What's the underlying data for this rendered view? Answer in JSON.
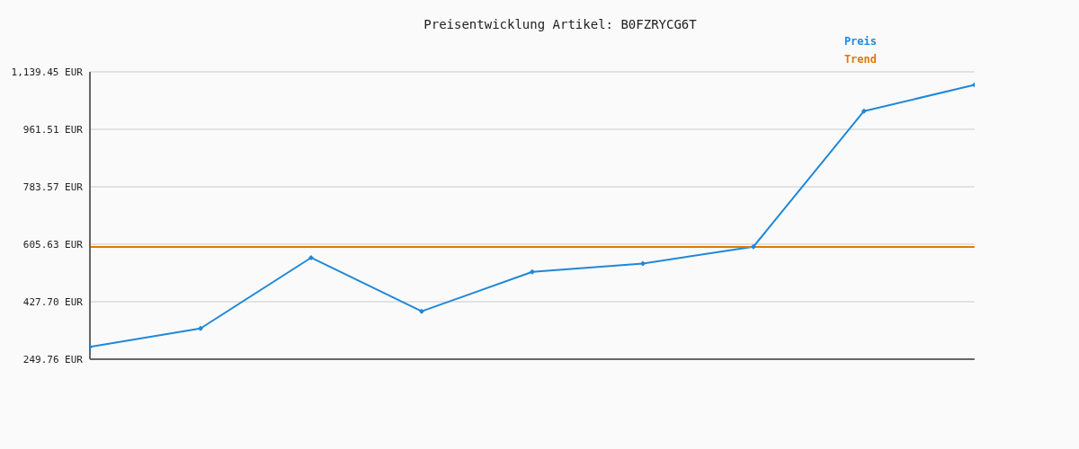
{
  "chart_data": {
    "type": "line",
    "title": "Preisentwicklung Artikel: B0FZRYCG6T",
    "categories": [
      null,
      null,
      null,
      null,
      null,
      null,
      null,
      null,
      null
    ],
    "series": [
      {
        "name": "Preis",
        "color": "#1f88d8",
        "marker": "diamond",
        "values": [
          288,
          345,
          564,
          398,
          520,
          546,
          598,
          1018,
          1099
        ]
      },
      {
        "name": "Trend",
        "color": "#e07800",
        "marker": "none",
        "values": [
          597,
          597,
          597,
          597,
          597,
          597,
          597,
          597,
          597
        ]
      }
    ],
    "ylim": [
      249.76,
      1139.45
    ],
    "yticks": [
      {
        "value": 249.76,
        "label": "249.76 EUR"
      },
      {
        "value": 427.7,
        "label": "427.70 EUR"
      },
      {
        "value": 605.63,
        "label": "605.63 EUR"
      },
      {
        "value": 783.57,
        "label": "783.57 EUR"
      },
      {
        "value": 961.51,
        "label": "961.51 EUR"
      },
      {
        "value": 1139.45,
        "label": "1,139.45 EUR"
      }
    ],
    "grid": "y",
    "legend": "top right",
    "tick_labels": "y"
  }
}
